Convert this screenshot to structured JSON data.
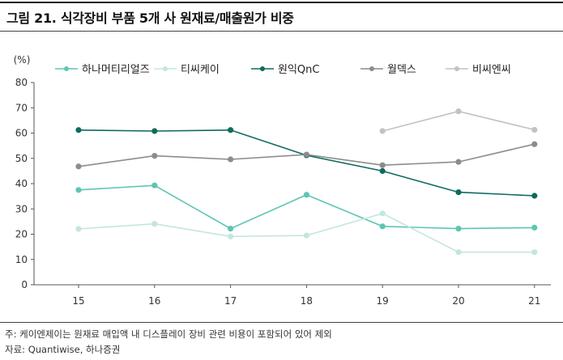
{
  "figure": {
    "title": "그림 21. 식각장비 부품 5개 사 원재료/매출원가 비중",
    "note": "주: 케이엔제이는 원재료 매입액 내 디스플레이 장비 관련 비용이 포함되어 있어 제외",
    "source": "자료: Quantiwise, 하나증권"
  },
  "chart_data": {
    "type": "line",
    "title": "",
    "xlabel": "",
    "ylabel": "(%)",
    "x": [
      "15",
      "16",
      "17",
      "18",
      "19",
      "20",
      "21"
    ],
    "ylim": [
      0,
      80
    ],
    "yticks": [
      0,
      10,
      20,
      30,
      40,
      50,
      60,
      70,
      80
    ],
    "grid": false,
    "legend_position": "top",
    "series": [
      {
        "name": "하나머티리얼즈",
        "color": "#5cc6b3",
        "values": [
          37.5,
          39.3,
          22.2,
          35.6,
          23.1,
          22.2,
          22.6
        ]
      },
      {
        "name": "티씨케이",
        "color": "#c3e6de",
        "values": [
          22.1,
          24.1,
          19.1,
          19.5,
          28.2,
          12.9,
          12.9
        ]
      },
      {
        "name": "원익QnC",
        "color": "#0e6b5e",
        "values": [
          61.2,
          60.8,
          61.2,
          51.2,
          45.0,
          36.6,
          35.2
        ]
      },
      {
        "name": "월덱스",
        "color": "#8c8c8c",
        "values": [
          46.8,
          51.0,
          49.6,
          51.5,
          47.3,
          48.6,
          55.6
        ]
      },
      {
        "name": "비씨엔씨",
        "color": "#c2c2c2",
        "values": [
          null,
          null,
          null,
          null,
          60.8,
          68.6,
          61.3
        ]
      }
    ]
  }
}
